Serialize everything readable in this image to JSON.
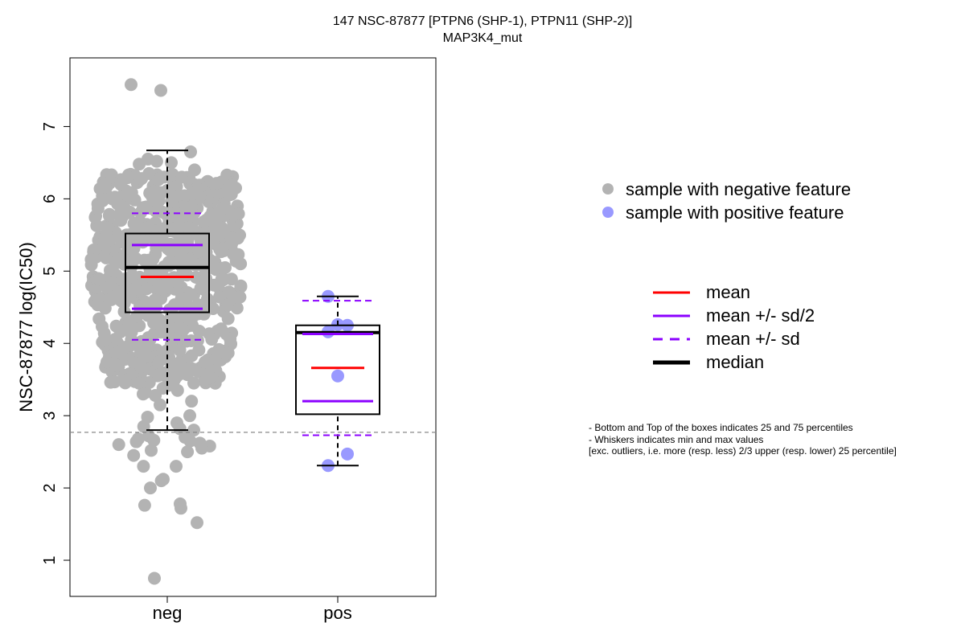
{
  "chart_data": {
    "type": "box+beeswarm",
    "title": "147 NSC-87877 [PTPN6 (SHP-1), PTPN11 (SHP-2)]",
    "subtitle": "MAP3K4_mut",
    "ylabel": "NSC-87877 log(IC50)",
    "xlabel": "",
    "categories": [
      "neg",
      "pos"
    ],
    "ylim": [
      0.5,
      7.95
    ],
    "yticks": [
      1,
      2,
      3,
      4,
      5,
      6,
      7
    ],
    "ytick_labels": [
      "1",
      "2",
      "3",
      "4",
      "5",
      "6",
      "7"
    ],
    "reference_line": 2.77,
    "series": [
      {
        "name": "sample with negative feature",
        "color": "#b3b3b3",
        "stats": {
          "whisker_low": 2.8,
          "q1": 4.43,
          "median": 5.05,
          "q3": 5.52,
          "whisker_high": 6.67,
          "mean": 4.92,
          "mean_minus_sd2": 4.48,
          "mean_plus_sd2": 5.36,
          "mean_minus_sd": 4.05,
          "mean_plus_sd": 5.8
        },
        "points": [
          7.58,
          7.5,
          6.65,
          6.55,
          6.52,
          6.5,
          6.48,
          6.4,
          6.35,
          6.3,
          3.45,
          3.42,
          3.38,
          3.35,
          3.32,
          3.3,
          3.28,
          3.2,
          3.15,
          3.0,
          2.98,
          2.9,
          2.85,
          2.82,
          2.8,
          2.72,
          2.7,
          2.68,
          2.66,
          2.65,
          2.64,
          2.62,
          2.6,
          2.58,
          2.55,
          2.52,
          2.5,
          2.45,
          2.3,
          2.3,
          2.12,
          2.1,
          2.0,
          1.78,
          1.76,
          1.72,
          1.52,
          0.75
        ]
      },
      {
        "name": "sample with positive feature",
        "color": "#9999ff",
        "stats": {
          "whisker_low": 2.31,
          "q1": 3.02,
          "median": 4.15,
          "q3": 4.25,
          "whisker_high": 4.65,
          "mean": 3.66,
          "mean_minus_sd2": 3.2,
          "mean_plus_sd2": 4.13,
          "mean_minus_sd": 2.73,
          "mean_plus_sd": 4.59
        },
        "points": [
          4.65,
          4.26,
          4.25,
          4.16,
          3.55,
          2.47,
          2.31
        ]
      }
    ],
    "legend_lines": [
      {
        "label": "mean",
        "color": "#ff0000",
        "style": "solid"
      },
      {
        "label": "mean +/- sd/2",
        "color": "#8b00ff",
        "style": "solid"
      },
      {
        "label": "mean +/- sd",
        "color": "#8b00ff",
        "style": "dashed"
      },
      {
        "label": "median",
        "color": "#000000",
        "style": "thick"
      }
    ],
    "notes": [
      "- Bottom and Top of the boxes indicates 25 and 75 percentiles",
      "- Whiskers indicates min and max values",
      "[exc. outliers, i.e. more (resp. less) 2/3 upper (resp. lower) 25 percentile]"
    ]
  }
}
